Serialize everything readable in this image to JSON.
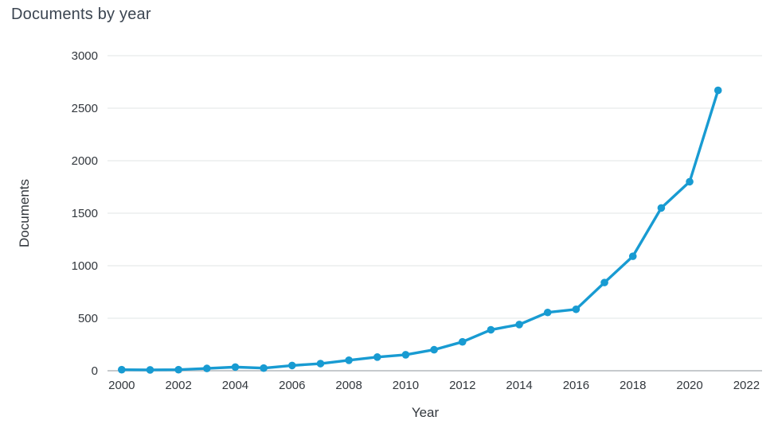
{
  "chart_title": "Documents by year",
  "chart_data": {
    "type": "line",
    "title": "Documents by year",
    "xlabel": "Year",
    "ylabel": "Documents",
    "series_name": "Documents",
    "x": [
      2000,
      2001,
      2002,
      2003,
      2004,
      2005,
      2006,
      2007,
      2008,
      2009,
      2010,
      2011,
      2012,
      2013,
      2014,
      2015,
      2016,
      2017,
      2018,
      2019,
      2020,
      2021
    ],
    "values": [
      10,
      8,
      10,
      22,
      35,
      25,
      50,
      68,
      100,
      130,
      152,
      200,
      275,
      390,
      440,
      555,
      585,
      840,
      1090,
      1550,
      1800,
      2670
    ],
    "x_ticks": [
      2000,
      2002,
      2004,
      2006,
      2008,
      2010,
      2012,
      2014,
      2016,
      2018,
      2020,
      2022
    ],
    "y_ticks": [
      0,
      500,
      1000,
      1500,
      2000,
      2500,
      3000
    ],
    "xlim": [
      1999.5,
      2022.55
    ],
    "ylim": [
      0,
      3000
    ],
    "grid": true,
    "legend": "none",
    "line_color": "#189bd2",
    "grid_color": "#e8eaeb",
    "baseline_color": "#c6cacd",
    "text_color": "#32373d",
    "title_color": "#3b4551"
  }
}
